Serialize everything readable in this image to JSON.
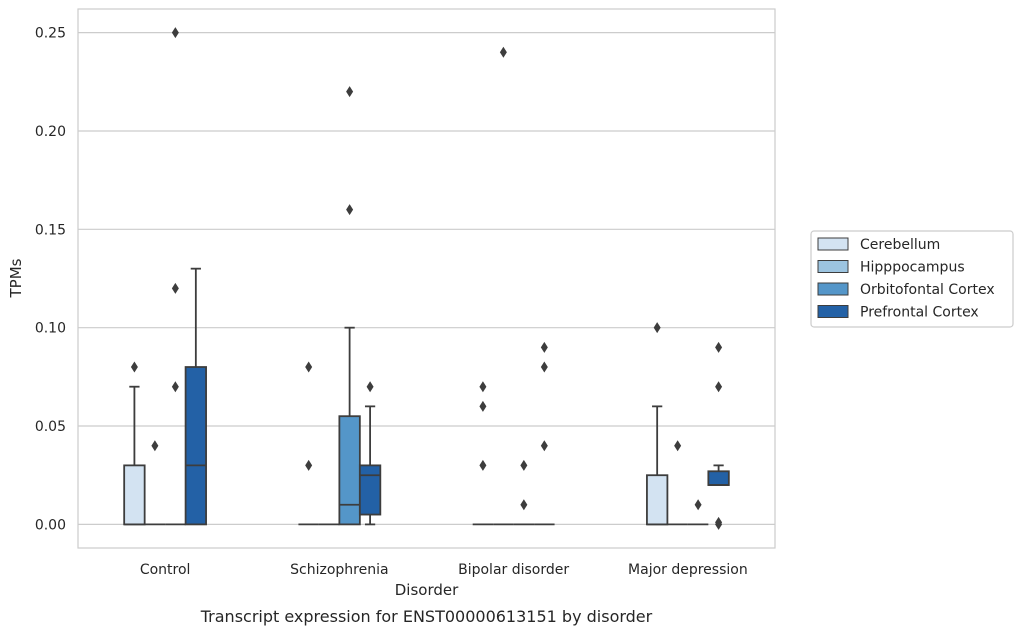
{
  "chart_data": {
    "type": "box",
    "xlabel": "Disorder",
    "ylabel": "TPMs",
    "caption": "Transcript expression for ENST00000613151 by disorder",
    "categories": [
      "Control",
      "Schizophrenia",
      "Bipolar disorder",
      "Major depression"
    ],
    "ylim": [
      -0.012,
      0.262
    ],
    "yticks": [
      0.0,
      0.05,
      0.1,
      0.15,
      0.2,
      0.25
    ],
    "ytick_labels": [
      "0.00",
      "0.05",
      "0.10",
      "0.15",
      "0.20",
      "0.25"
    ],
    "grid": "horizontal",
    "legend_position": "right",
    "series": [
      {
        "name": "Cerebellum",
        "color": "#d3e3f2",
        "boxes": [
          {
            "q1": 0,
            "median": 0,
            "q3": 0.03,
            "whisker_low": 0,
            "whisker_high": 0.07,
            "outliers": [
              0.08
            ]
          },
          {
            "q1": 0,
            "median": 0,
            "q3": 0,
            "whisker_low": 0,
            "whisker_high": 0,
            "outliers": [
              0.03,
              0.08
            ]
          },
          {
            "q1": 0,
            "median": 0,
            "q3": 0,
            "whisker_low": 0,
            "whisker_high": 0,
            "outliers": [
              0.03,
              0.06,
              0.07
            ]
          },
          {
            "q1": 0,
            "median": 0,
            "q3": 0.025,
            "whisker_low": 0,
            "whisker_high": 0.06,
            "outliers": [
              0.1
            ]
          }
        ]
      },
      {
        "name": "Hipppocampus",
        "color": "#9cc4e0",
        "boxes": [
          {
            "q1": 0,
            "median": 0,
            "q3": 0,
            "whisker_low": 0,
            "whisker_high": 0,
            "outliers": [
              0.04
            ]
          },
          {
            "q1": 0,
            "median": 0,
            "q3": 0,
            "whisker_low": 0,
            "whisker_high": 0,
            "outliers": []
          },
          {
            "q1": 0,
            "median": 0,
            "q3": 0,
            "whisker_low": 0,
            "whisker_high": 0,
            "outliers": [
              0.24
            ]
          },
          {
            "q1": 0,
            "median": 0,
            "q3": 0,
            "whisker_low": 0,
            "whisker_high": 0,
            "outliers": [
              0.04
            ]
          }
        ]
      },
      {
        "name": "Orbitofontal Cortex",
        "color": "#5496c9",
        "boxes": [
          {
            "q1": 0,
            "median": 0,
            "q3": 0,
            "whisker_low": 0,
            "whisker_high": 0,
            "outliers": [
              0.07,
              0.12,
              0.25
            ]
          },
          {
            "q1": 0,
            "median": 0.01,
            "q3": 0.055,
            "whisker_low": 0,
            "whisker_high": 0.1,
            "outliers": [
              0.16,
              0.22
            ]
          },
          {
            "q1": 0,
            "median": 0,
            "q3": 0,
            "whisker_low": 0,
            "whisker_high": 0,
            "outliers": [
              0.01,
              0.03
            ]
          },
          {
            "q1": 0,
            "median": 0,
            "q3": 0,
            "whisker_low": 0,
            "whisker_high": 0,
            "outliers": [
              0.01
            ]
          }
        ]
      },
      {
        "name": "Prefrontal Cortex",
        "color": "#2361a6",
        "boxes": [
          {
            "q1": 0,
            "median": 0.03,
            "q3": 0.08,
            "whisker_low": 0,
            "whisker_high": 0.13,
            "outliers": []
          },
          {
            "q1": 0.005,
            "median": 0.025,
            "q3": 0.03,
            "whisker_low": 0,
            "whisker_high": 0.06,
            "outliers": [
              0.07
            ]
          },
          {
            "q1": 0,
            "median": 0,
            "q3": 0,
            "whisker_low": 0,
            "whisker_high": 0,
            "outliers": [
              0.04,
              0.08,
              0.09
            ]
          },
          {
            "q1": 0.02,
            "median": 0.02,
            "q3": 0.027,
            "whisker_low": 0.02,
            "whisker_high": 0.03,
            "outliers": [
              0,
              0.001,
              0.07,
              0.09
            ]
          }
        ]
      }
    ]
  }
}
